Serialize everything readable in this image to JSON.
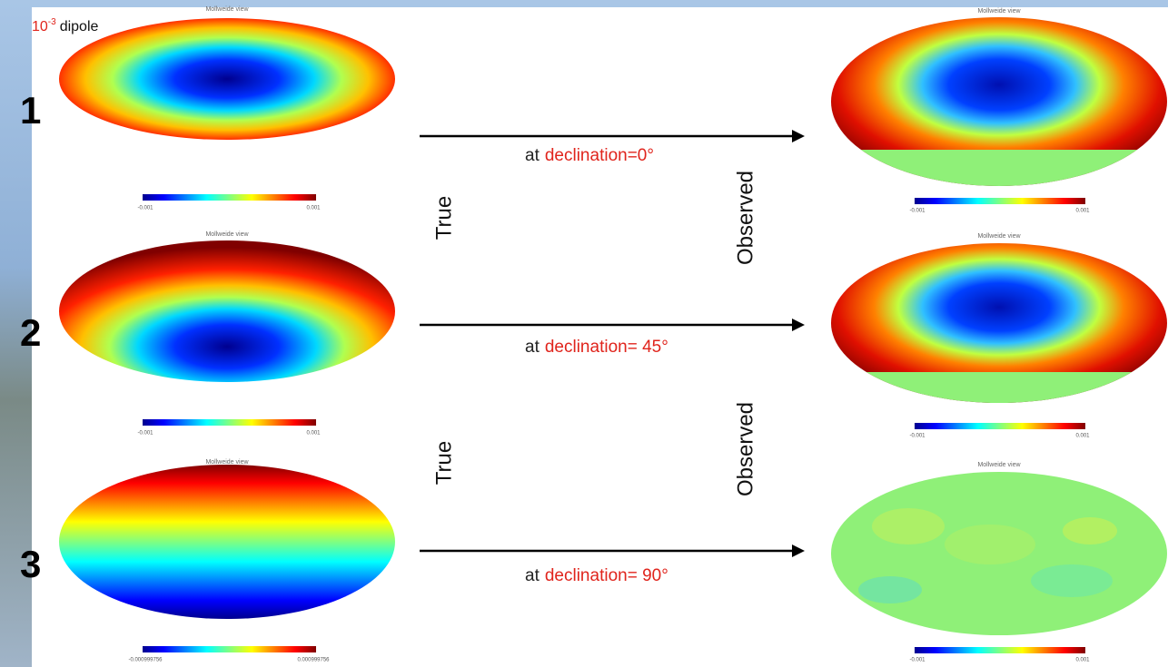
{
  "header": {
    "scale": "10",
    "exponent": "-3",
    "label": "dipole"
  },
  "rows": [
    {
      "number": "1",
      "caption_prefix": "at",
      "declination": "declination=0°",
      "true_map": {
        "title": "Mollweide view",
        "min": "-0.001",
        "max": "0.001"
      },
      "observed_map": {
        "title": "Mollweide view",
        "min": "-0.001",
        "max": "0.001"
      }
    },
    {
      "number": "2",
      "caption_prefix": "at",
      "declination": "declination= 45°",
      "true_map": {
        "title": "Mollweide view",
        "min": "-0.001",
        "max": "0.001"
      },
      "observed_map": {
        "title": "Mollweide view",
        "min": "-0.001",
        "max": "0.001"
      }
    },
    {
      "number": "3",
      "caption_prefix": "at",
      "declination": "declination= 90°",
      "true_map": {
        "title": "Mollweide view",
        "min": "-0.000999756",
        "max": "0.000999756"
      },
      "observed_map": {
        "title": "Mollweide view",
        "min": "-0.001",
        "max": "0.001"
      }
    }
  ],
  "side_labels": [
    {
      "true": "True",
      "observed": "Observed"
    },
    {
      "true": "True",
      "observed": "Observed"
    }
  ]
}
